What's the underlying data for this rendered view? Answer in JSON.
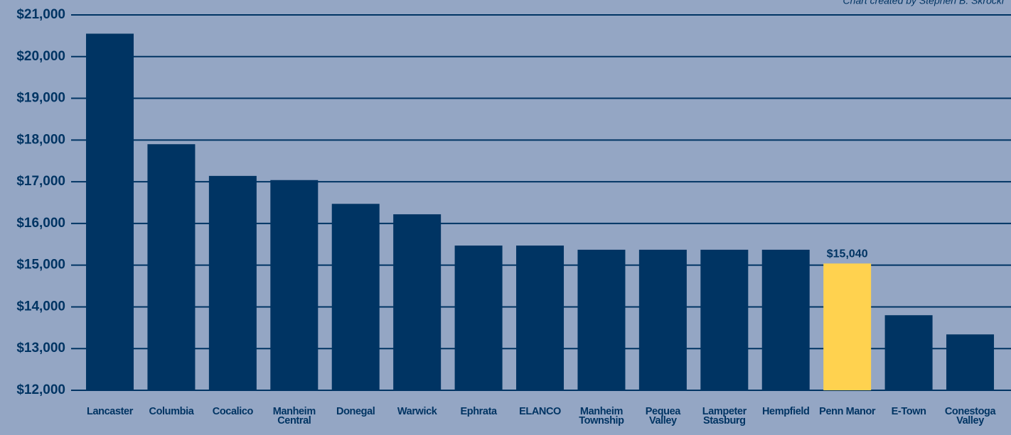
{
  "chart_data": {
    "type": "bar",
    "annotation": "Chart created by Stephen B. Skrocki",
    "categories": [
      "Lancaster",
      "Columbia",
      "Cocalico",
      "Manheim Central",
      "Donegal",
      "Warwick",
      "Ephrata",
      "ELANCO",
      "Manheim Township",
      "Pequea Valley",
      "Lampeter Stasburg",
      "Hempfield",
      "Penn Manor",
      "E-Town",
      "Conestoga Valley"
    ],
    "values": [
      20550,
      17900,
      17140,
      17040,
      16470,
      16220,
      15470,
      15470,
      15370,
      15370,
      15370,
      15370,
      15040,
      13800,
      13340
    ],
    "value_labels": [
      null,
      null,
      null,
      null,
      null,
      null,
      null,
      null,
      null,
      null,
      null,
      null,
      "$15,040",
      null,
      null
    ],
    "colors": [
      "#003463",
      "#003463",
      "#003463",
      "#003463",
      "#003463",
      "#003463",
      "#003463",
      "#003463",
      "#003463",
      "#003463",
      "#003463",
      "#003463",
      "#ffd24f",
      "#003463",
      "#003463"
    ],
    "ylim": [
      12000,
      21000
    ],
    "yticks": [
      {
        "value": 12000,
        "label": "$12,000"
      },
      {
        "value": 13000,
        "label": "$13,000"
      },
      {
        "value": 14000,
        "label": "$14,000"
      },
      {
        "value": 15000,
        "label": "$15,000"
      },
      {
        "value": 16000,
        "label": "$16,000"
      },
      {
        "value": 17000,
        "label": "$17,000"
      },
      {
        "value": 18000,
        "label": "$18,000"
      },
      {
        "value": 19000,
        "label": "$19,000"
      },
      {
        "value": 20000,
        "label": "$20,000"
      },
      {
        "value": 21000,
        "label": "$21,000"
      }
    ],
    "grid": true
  }
}
